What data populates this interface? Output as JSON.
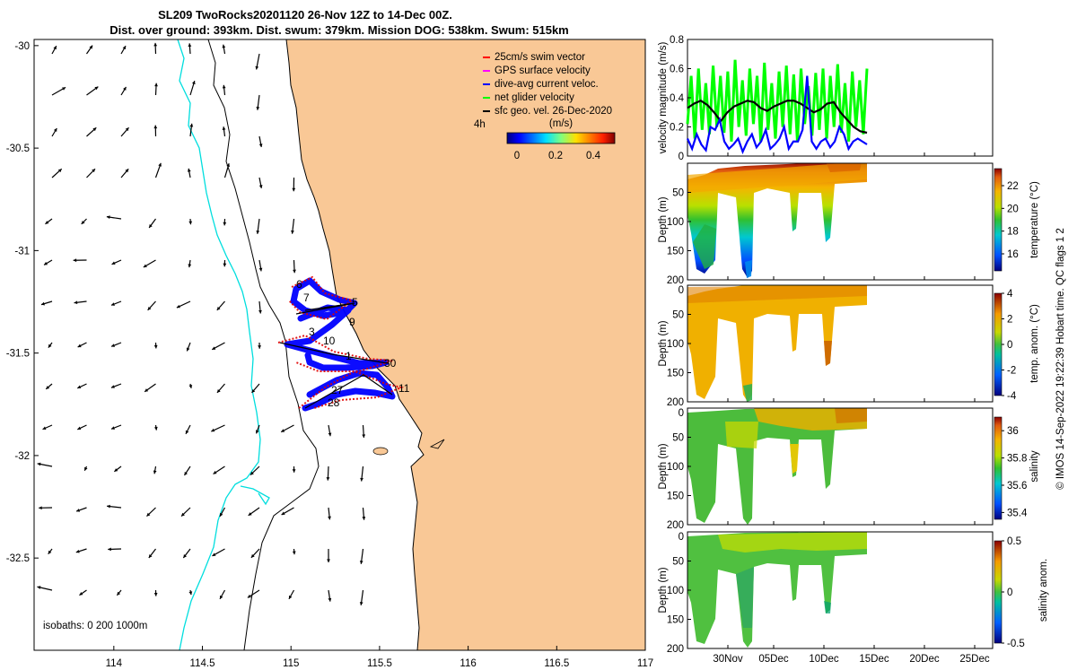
{
  "title": {
    "line1": "SL209 TwoRocks20201120 26-Nov 12Z to 14-Dec 00Z.",
    "line2": "Dist. over ground: 393km. Dist. swum: 379km. Mission DOG: 538km. Swum: 515km"
  },
  "chart_data": [
    {
      "type": "map",
      "xticks": [
        "114",
        "114.5",
        "115",
        "115.5",
        "116",
        "116.5",
        "117"
      ],
      "xlim": [
        113.55,
        117.0
      ],
      "yticks": [
        "-30",
        "-30.5",
        "-31",
        "-31.5",
        "-32",
        "-32.5"
      ],
      "ylim": [
        -32.95,
        -29.97
      ],
      "legend": {
        "position": "top-right",
        "entries": [
          {
            "label": "25cm/s swim vector",
            "color": "#ff0000"
          },
          {
            "label": "GPS surface velocity",
            "color": "#ff00ff"
          },
          {
            "label": "dive-avg current veloc.",
            "color": "#0000ff"
          },
          {
            "label": "net glider velocity",
            "color": "#00ff00"
          },
          {
            "label": "sfc geo. vel. 26-Dec-2020",
            "color": "#000000"
          }
        ],
        "time_label": "4h"
      },
      "colorbar": {
        "title": "(m/s)",
        "ticks": [
          "0",
          "0.2",
          "0.4"
        ],
        "range": [
          0,
          0.5
        ]
      },
      "isobath_text": "isobaths: 0   200  1000m",
      "track_labels": [
        "6",
        "7",
        "5",
        "9",
        "3",
        "10",
        "1",
        "30",
        "27",
        "11",
        "28"
      ],
      "colors": {
        "land": "#f9c896",
        "coast_200m": "#000000",
        "isobath_1000m": "#00dede",
        "track": "#0000ff",
        "swim": "#ff0000"
      }
    },
    {
      "type": "line",
      "ylabel": "velocity magnitude (m/s)",
      "ylim": [
        0,
        0.8
      ],
      "yticks": [
        "0",
        "0.2",
        "0.4",
        "0.6",
        "0.8"
      ],
      "series": [
        {
          "color": "#00ff00",
          "values": [
            0.22,
            0.55,
            0.12,
            0.6,
            0.18,
            0.5,
            0.15,
            0.62,
            0.2,
            0.55,
            0.16,
            0.58,
            0.1,
            0.66,
            0.2,
            0.52,
            0.14,
            0.6,
            0.22,
            0.55,
            0.1,
            0.64,
            0.18,
            0.5,
            0.12,
            0.58,
            0.2,
            0.62,
            0.15,
            0.56,
            0.1,
            0.6,
            0.22,
            0.48,
            0.14,
            0.57,
            0.18,
            0.6,
            0.12,
            0.55,
            0.2,
            0.63,
            0.16,
            0.5,
            0.1,
            0.58,
            0.2,
            0.52,
            0.15,
            0.6
          ]
        },
        {
          "color": "#000000",
          "values": [
            0.33,
            0.36,
            0.38,
            0.35,
            0.3,
            0.24,
            0.3,
            0.34,
            0.36,
            0.38,
            0.37,
            0.33,
            0.31,
            0.34,
            0.36,
            0.38,
            0.38,
            0.36,
            0.33,
            0.3,
            0.32,
            0.36,
            0.37,
            0.3,
            0.25,
            0.2,
            0.17,
            0.16
          ]
        },
        {
          "color": "#0000ff",
          "values": [
            0.12,
            0.05,
            0.15,
            0.08,
            0.04,
            0.2,
            0.18,
            0.25,
            0.1,
            0.05,
            0.08,
            0.12,
            0.03,
            0.1,
            0.15,
            0.06,
            0.1,
            0.18,
            0.05,
            0.08,
            0.12,
            0.2,
            0.05,
            0.1,
            0.1,
            0.18,
            0.55,
            0.1,
            0.05,
            0.1,
            0.12,
            0.06,
            0.1,
            0.2,
            0.15,
            0.05,
            0.1,
            0.12,
            0.1,
            0.08
          ]
        }
      ]
    },
    {
      "type": "heatmap",
      "ylabel": "Depth (m)",
      "cbar_label": "temperature (°C)",
      "yticks": [
        "50",
        "100",
        "150",
        "200"
      ],
      "cbar_ticks": [
        "16",
        "18",
        "20",
        "22"
      ],
      "clim": [
        14.5,
        23.5
      ]
    },
    {
      "type": "heatmap",
      "ylabel": "Depth (m)",
      "cbar_label": "temp. anom. (°C)",
      "yticks": [
        "0",
        "50",
        "100",
        "150",
        "200"
      ],
      "cbar_ticks": [
        "4",
        "2",
        "0",
        "-2",
        "-4"
      ],
      "clim": [
        -4,
        4
      ]
    },
    {
      "type": "heatmap",
      "ylabel": "Depth (m)",
      "cbar_label": "salinity",
      "yticks": [
        "0",
        "50",
        "100",
        "150",
        "200"
      ],
      "cbar_ticks": [
        "36",
        "35.8",
        "35.6",
        "35.4"
      ],
      "clim": [
        35.35,
        36.1
      ]
    },
    {
      "type": "heatmap",
      "ylabel": "Depth (m)",
      "cbar_label": "salinity anom.",
      "yticks": [
        "0",
        "50",
        "100",
        "150",
        "200"
      ],
      "cbar_ticks": [
        "0.5",
        "0",
        "-0.5"
      ],
      "clim": [
        -0.5,
        0.5
      ],
      "xticks": [
        "30Nov",
        "05Dec",
        "10Dec",
        "15Dec",
        "20Dec",
        "25Dec"
      ]
    }
  ],
  "footer": "© IMOS 14-Sep-2022 19:22:39 Hobart time. QC flags 1  2"
}
